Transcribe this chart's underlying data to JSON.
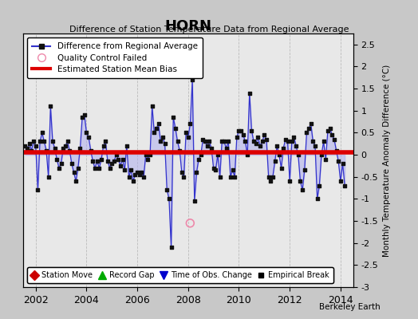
{
  "title": "HORN",
  "subtitle": "Difference of Station Temperature Data from Regional Average",
  "ylabel_right": "Monthly Temperature Anomaly Difference (°C)",
  "xlim": [
    2001.5,
    2014.5
  ],
  "ylim": [
    -3,
    2.75
  ],
  "yticks": [
    -3,
    -2.5,
    -2,
    -1.5,
    -1,
    -0.5,
    0,
    0.5,
    1,
    1.5,
    2,
    2.5
  ],
  "xticks": [
    2002,
    2004,
    2006,
    2008,
    2010,
    2012,
    2014
  ],
  "bias_line_y": 0.05,
  "fig_bg_color": "#c8c8c8",
  "plot_bg_color": "#e8e8e8",
  "line_color": "#3333cc",
  "fill_color": "#aaaaee",
  "dot_color": "#111111",
  "bias_color": "#dd0000",
  "qc_fail_x": 2008.08,
  "qc_fail_y": -1.55,
  "watermark": "Berkeley Earth",
  "x_data": [
    2001.583,
    2001.667,
    2001.75,
    2001.833,
    2001.917,
    2002.0,
    2002.083,
    2002.167,
    2002.25,
    2002.333,
    2002.417,
    2002.5,
    2002.583,
    2002.667,
    2002.75,
    2002.833,
    2002.917,
    2003.0,
    2003.083,
    2003.167,
    2003.25,
    2003.333,
    2003.417,
    2003.5,
    2003.583,
    2003.667,
    2003.75,
    2003.833,
    2003.917,
    2004.0,
    2004.083,
    2004.167,
    2004.25,
    2004.333,
    2004.417,
    2004.5,
    2004.583,
    2004.667,
    2004.75,
    2004.833,
    2004.917,
    2005.0,
    2005.083,
    2005.167,
    2005.25,
    2005.333,
    2005.417,
    2005.5,
    2005.583,
    2005.667,
    2005.75,
    2005.833,
    2005.917,
    2006.0,
    2006.083,
    2006.167,
    2006.25,
    2006.333,
    2006.417,
    2006.5,
    2006.583,
    2006.667,
    2006.75,
    2006.833,
    2006.917,
    2007.0,
    2007.083,
    2007.167,
    2007.25,
    2007.333,
    2007.417,
    2007.5,
    2007.583,
    2007.667,
    2007.75,
    2007.833,
    2007.917,
    2008.0,
    2008.083,
    2008.167,
    2008.25,
    2008.333,
    2008.417,
    2008.5,
    2008.583,
    2008.667,
    2008.75,
    2008.833,
    2008.917,
    2009.0,
    2009.083,
    2009.167,
    2009.25,
    2009.333,
    2009.417,
    2009.5,
    2009.583,
    2009.667,
    2009.75,
    2009.833,
    2009.917,
    2010.0,
    2010.083,
    2010.167,
    2010.25,
    2010.333,
    2010.417,
    2010.5,
    2010.583,
    2010.667,
    2010.75,
    2010.833,
    2010.917,
    2011.0,
    2011.083,
    2011.167,
    2011.25,
    2011.333,
    2011.417,
    2011.5,
    2011.583,
    2011.667,
    2011.75,
    2011.833,
    2011.917,
    2012.0,
    2012.083,
    2012.167,
    2012.25,
    2012.333,
    2012.417,
    2012.5,
    2012.583,
    2012.667,
    2012.75,
    2012.833,
    2012.917,
    2013.0,
    2013.083,
    2013.167,
    2013.25,
    2013.333,
    2013.417,
    2013.5,
    2013.583,
    2013.667,
    2013.75,
    2013.833,
    2013.917,
    2014.0,
    2014.083,
    2014.167
  ],
  "y_data": [
    0.2,
    0.15,
    0.25,
    0.1,
    0.3,
    0.2,
    -0.8,
    0.3,
    0.5,
    0.3,
    0.1,
    -0.5,
    1.1,
    0.3,
    0.15,
    -0.1,
    -0.3,
    -0.2,
    0.15,
    0.2,
    0.3,
    0.1,
    -0.2,
    -0.4,
    -0.6,
    -0.3,
    0.15,
    0.85,
    0.9,
    0.5,
    0.4,
    0.1,
    -0.15,
    -0.3,
    -0.15,
    -0.3,
    -0.1,
    0.2,
    0.3,
    -0.15,
    -0.3,
    -0.2,
    -0.15,
    0.0,
    -0.1,
    -0.25,
    -0.1,
    -0.35,
    0.2,
    -0.5,
    -0.35,
    -0.6,
    -0.45,
    -0.4,
    -0.45,
    -0.4,
    -0.5,
    0.0,
    -0.1,
    0.0,
    1.1,
    0.5,
    0.6,
    0.7,
    0.3,
    0.4,
    0.25,
    -0.8,
    -1.0,
    -2.1,
    0.85,
    0.6,
    0.3,
    0.1,
    -0.4,
    -0.5,
    0.5,
    0.4,
    0.7,
    1.7,
    -1.05,
    -0.4,
    -0.1,
    0.0,
    0.35,
    0.3,
    0.2,
    0.3,
    0.15,
    -0.3,
    -0.35,
    0.0,
    -0.5,
    0.3,
    0.3,
    0.15,
    0.3,
    -0.5,
    -0.35,
    -0.5,
    0.4,
    0.55,
    0.55,
    0.45,
    0.3,
    0.0,
    1.4,
    0.55,
    0.3,
    0.25,
    0.4,
    0.2,
    0.3,
    0.45,
    0.35,
    -0.5,
    -0.6,
    -0.5,
    -0.15,
    0.2,
    0.0,
    -0.3,
    0.15,
    0.35,
    0.3,
    -0.6,
    0.3,
    0.4,
    0.2,
    0.0,
    -0.6,
    -0.8,
    -0.35,
    0.5,
    0.6,
    0.7,
    0.3,
    0.2,
    -1.0,
    -0.7,
    0.0,
    0.3,
    -0.1,
    0.55,
    0.6,
    0.45,
    0.35,
    0.1,
    -0.15,
    -0.6,
    -0.2,
    -0.7
  ]
}
